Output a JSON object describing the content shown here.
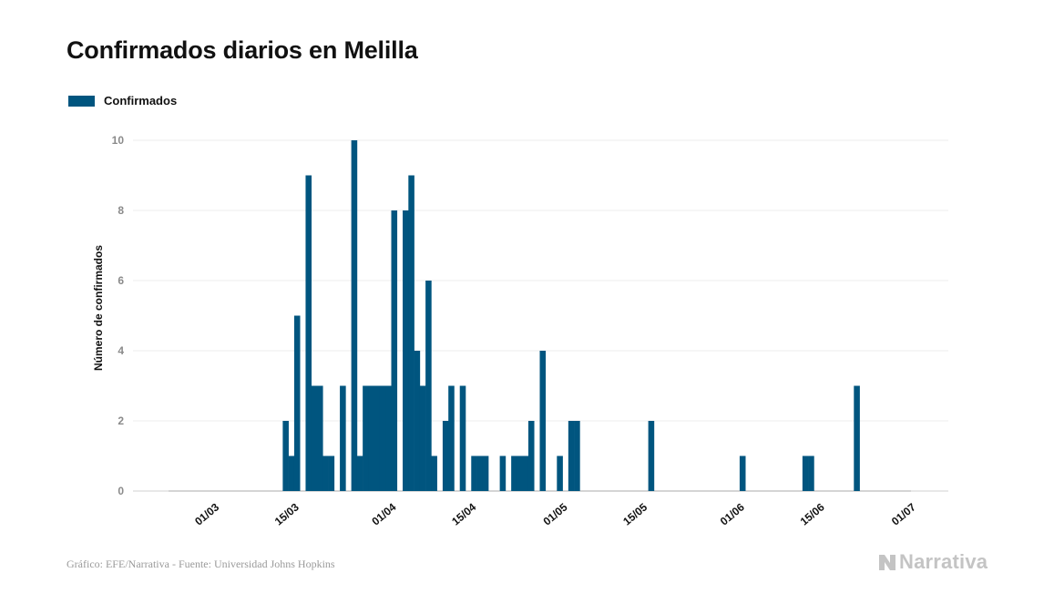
{
  "title": "Confirmados diarios en Melilla",
  "legend": {
    "label": "Confirmados",
    "color": "#00557f"
  },
  "source": "Gráfico: EFE/Narrativa - Fuente: Universidad Johns Hopkins",
  "brand": {
    "name": "Narrativa",
    "icon": "narrativa-logo-icon"
  },
  "chart_data": {
    "type": "bar",
    "title": "Confirmados diarios en Melilla",
    "ylabel": "Número de confirmados",
    "xlabel": "",
    "ylim": [
      0,
      10
    ],
    "yticks": [
      0,
      2,
      4,
      6,
      8,
      10
    ],
    "grid": true,
    "legend_position": "top-left",
    "x_start": "2020-02-22",
    "x_end": "2020-06-30",
    "xticks": [
      {
        "date": "2020-03-01",
        "label": "01/03"
      },
      {
        "date": "2020-03-15",
        "label": "15/03"
      },
      {
        "date": "2020-04-01",
        "label": "01/04"
      },
      {
        "date": "2020-04-15",
        "label": "15/04"
      },
      {
        "date": "2020-05-01",
        "label": "01/05"
      },
      {
        "date": "2020-05-15",
        "label": "15/05"
      },
      {
        "date": "2020-06-01",
        "label": "01/06"
      },
      {
        "date": "2020-06-15",
        "label": "15/06"
      },
      {
        "date": "2020-07-01",
        "label": "01/07"
      }
    ],
    "series": [
      {
        "name": "Confirmados",
        "color": "#00557f",
        "points": [
          [
            "2020-03-13",
            2
          ],
          [
            "2020-03-14",
            1
          ],
          [
            "2020-03-15",
            5
          ],
          [
            "2020-03-17",
            9
          ],
          [
            "2020-03-18",
            3
          ],
          [
            "2020-03-19",
            3
          ],
          [
            "2020-03-20",
            1
          ],
          [
            "2020-03-21",
            1
          ],
          [
            "2020-03-23",
            3
          ],
          [
            "2020-03-25",
            10
          ],
          [
            "2020-03-26",
            1
          ],
          [
            "2020-03-27",
            3
          ],
          [
            "2020-03-28",
            3
          ],
          [
            "2020-03-29",
            3
          ],
          [
            "2020-03-30",
            3
          ],
          [
            "2020-03-31",
            3
          ],
          [
            "2020-04-01",
            8
          ],
          [
            "2020-04-03",
            8
          ],
          [
            "2020-04-04",
            9
          ],
          [
            "2020-04-05",
            4
          ],
          [
            "2020-04-06",
            3
          ],
          [
            "2020-04-07",
            6
          ],
          [
            "2020-04-08",
            1
          ],
          [
            "2020-04-10",
            2
          ],
          [
            "2020-04-11",
            3
          ],
          [
            "2020-04-13",
            3
          ],
          [
            "2020-04-15",
            1
          ],
          [
            "2020-04-16",
            1
          ],
          [
            "2020-04-17",
            1
          ],
          [
            "2020-04-20",
            1
          ],
          [
            "2020-04-22",
            1
          ],
          [
            "2020-04-23",
            1
          ],
          [
            "2020-04-24",
            1
          ],
          [
            "2020-04-25",
            2
          ],
          [
            "2020-04-27",
            4
          ],
          [
            "2020-04-30",
            1
          ],
          [
            "2020-05-02",
            2
          ],
          [
            "2020-05-03",
            2
          ],
          [
            "2020-05-16",
            2
          ],
          [
            "2020-06-01",
            1
          ],
          [
            "2020-06-12",
            1
          ],
          [
            "2020-06-13",
            1
          ],
          [
            "2020-06-21",
            3
          ]
        ]
      }
    ]
  }
}
